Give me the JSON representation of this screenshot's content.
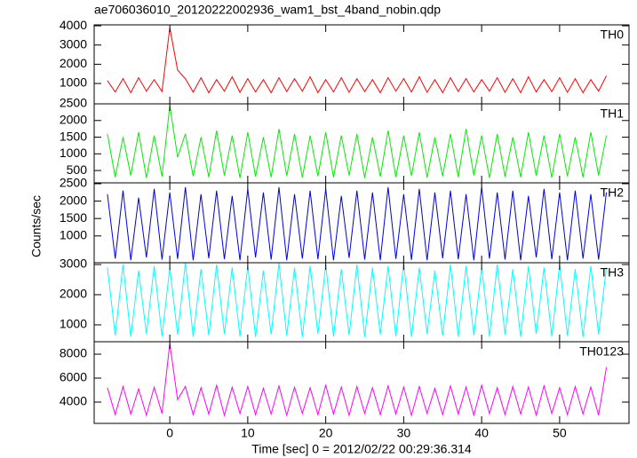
{
  "chart_data": {
    "type": "line",
    "title": "ae706036010_20120222002936_wam1_bst_4band_nobin.qdp",
    "xlabel": "Time [sec] 0 = 2012/02/22 00:29:36.314",
    "ylabel": "Counts/sec",
    "x": [
      -8,
      -7,
      -6,
      -5,
      -4,
      -3,
      -2,
      -1,
      0,
      1,
      2,
      3,
      4,
      5,
      6,
      7,
      8,
      9,
      10,
      11,
      12,
      13,
      14,
      15,
      16,
      17,
      18,
      19,
      20,
      21,
      22,
      23,
      24,
      25,
      26,
      27,
      28,
      29,
      30,
      31,
      32,
      33,
      34,
      35,
      36,
      37,
      38,
      39,
      40,
      41,
      42,
      43,
      44,
      45,
      46,
      47,
      48,
      49,
      50,
      51,
      52,
      53,
      54,
      55,
      56
    ],
    "xlim": [
      -9.7,
      58.9
    ],
    "xticks": [
      0,
      10,
      20,
      30,
      40,
      50
    ],
    "panels": [
      {
        "name": "TH0",
        "color": "#ff0000",
        "ylim": [
          -60,
          4050
        ],
        "yticks": [
          1000,
          2000,
          3000,
          4000
        ],
        "values": [
          1150,
          560,
          1250,
          520,
          1300,
          600,
          1200,
          580,
          3900,
          1700,
          1250,
          550,
          1300,
          520,
          1200,
          600,
          1350,
          540,
          1250,
          560,
          1200,
          520,
          1300,
          580,
          1250,
          600,
          1350,
          520,
          1200,
          560,
          1300,
          540,
          1250,
          580,
          1200,
          520,
          1300,
          600,
          1250,
          560,
          1350,
          540,
          1200,
          520,
          1300,
          580,
          1250,
          560,
          1200,
          600,
          1300,
          540,
          1250,
          520,
          1350,
          560,
          1200,
          580,
          1300,
          540,
          1250,
          520,
          1200,
          600,
          1400
        ]
      },
      {
        "name": "TH1",
        "color": "#00ee00",
        "ylim": [
          130,
          2500
        ],
        "yticks": [
          500,
          1000,
          1500,
          2000,
          2500
        ],
        "values": [
          1600,
          300,
          1500,
          350,
          1650,
          280,
          1550,
          320,
          2450,
          900,
          1600,
          330,
          1500,
          300,
          1700,
          350,
          1550,
          280,
          1650,
          320,
          1500,
          300,
          1750,
          340,
          1600,
          290,
          1550,
          330,
          1650,
          300,
          1550,
          350,
          1600,
          280,
          1500,
          320,
          1700,
          300,
          1550,
          340,
          1650,
          290,
          1500,
          330,
          1600,
          300,
          1750,
          350,
          1550,
          280,
          1600,
          320,
          1500,
          300,
          1650,
          340,
          1550,
          290,
          1600,
          330,
          1500,
          300,
          1650,
          350,
          1550
        ]
      },
      {
        "name": "TH2",
        "color": "#0000dd",
        "ylim": [
          230,
          2525
        ],
        "yticks": [
          1000,
          1500,
          2000,
          2500
        ],
        "values": [
          2200,
          350,
          2300,
          300,
          2100,
          380,
          2350,
          320,
          2250,
          340,
          2400,
          300,
          2200,
          360,
          2300,
          330,
          2150,
          300,
          2350,
          380,
          2250,
          320,
          2400,
          300,
          2200,
          350,
          2300,
          330,
          2350,
          300,
          2150,
          370,
          2300,
          320,
          2250,
          300,
          2400,
          340,
          2200,
          310,
          2350,
          300,
          2250,
          360,
          2300,
          330,
          2200,
          300,
          2400,
          350,
          2250,
          320,
          2300,
          300,
          2150,
          380,
          2350,
          330,
          2250,
          300,
          2300,
          350,
          2200,
          320,
          2250
        ]
      },
      {
        "name": "TH3",
        "color": "#00ffff",
        "ylim": [
          440,
          3060
        ],
        "yticks": [
          1000,
          2000,
          3000
        ],
        "values": [
          2900,
          650,
          3000,
          600,
          2800,
          700,
          2950,
          620,
          2900,
          680,
          3050,
          600,
          2850,
          650,
          3000,
          700,
          2900,
          620,
          2950,
          600,
          2800,
          680,
          3050,
          640,
          2900,
          600,
          2950,
          700,
          3000,
          620,
          2850,
          650,
          3000,
          600,
          2900,
          680,
          2950,
          620,
          3050,
          600,
          2900,
          700,
          2800,
          640,
          3000,
          600,
          2950,
          650,
          2900,
          620,
          3000,
          680,
          2850,
          600,
          2950,
          700,
          2900,
          620,
          3000,
          640,
          2850,
          600,
          2950,
          680,
          2900
        ]
      },
      {
        "name": "TH0123",
        "color": "#ff00ff",
        "ylim": [
          2220,
          9040
        ],
        "yticks": [
          4000,
          6000,
          8000
        ],
        "values": [
          5200,
          2950,
          5300,
          3000,
          5100,
          2900,
          5250,
          3050,
          8900,
          4200,
          5300,
          2950,
          5200,
          3000,
          5400,
          2900,
          5250,
          3050,
          5300,
          2950,
          5150,
          3000,
          5350,
          2900,
          5250,
          3050,
          5200,
          2950,
          5400,
          3000,
          5250,
          2900,
          5300,
          3050,
          5200,
          2950,
          5350,
          3000,
          5250,
          2900,
          5300,
          3050,
          5150,
          2950,
          5350,
          3000,
          5250,
          2900,
          5400,
          3050,
          5200,
          2950,
          5300,
          3000,
          5250,
          2900,
          5350,
          3050,
          5200,
          2950,
          5300,
          3000,
          5250,
          2900,
          6900
        ]
      }
    ]
  }
}
